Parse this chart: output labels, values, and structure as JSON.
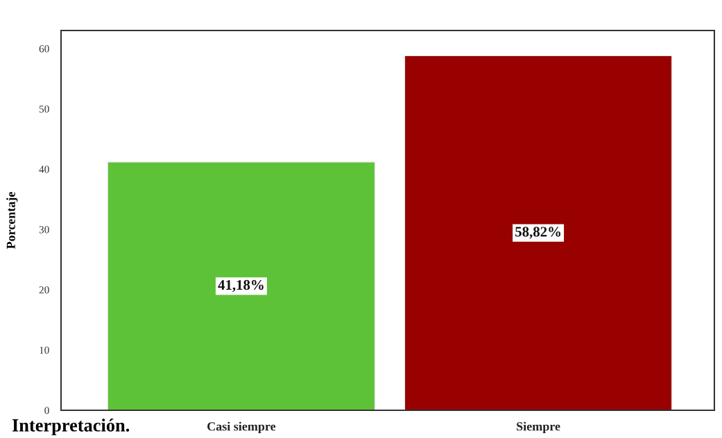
{
  "chart_data": {
    "type": "bar",
    "categories": [
      "Casi siempre",
      "Siempre"
    ],
    "values": [
      41.18,
      58.82
    ],
    "colors": [
      "#5ec238",
      "#990000"
    ],
    "value_labels": [
      "41,18%",
      "58,82%"
    ],
    "ylabel": "Porcentaje",
    "ylim": [
      0,
      63
    ],
    "yticks": [
      0,
      10,
      20,
      30,
      40,
      50,
      60
    ],
    "annotations": [
      "Interpretación."
    ]
  }
}
